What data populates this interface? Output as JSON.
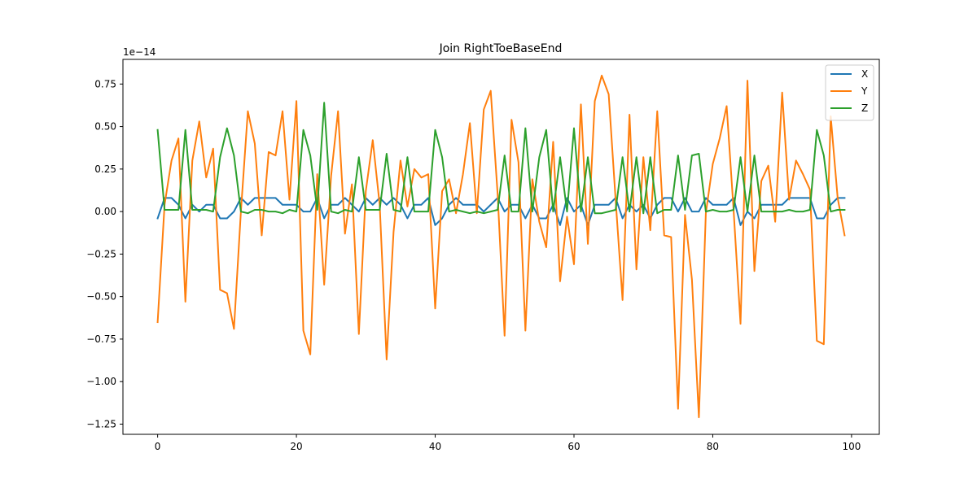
{
  "chart_data": {
    "type": "line",
    "title": "Join RightToeBaseEnd",
    "xlabel": "",
    "ylabel": "",
    "xlim": [
      -5,
      104
    ],
    "ylim": [
      -1.31,
      0.895
    ],
    "y_offset_label": "1e−14",
    "xticks": [
      0,
      20,
      40,
      60,
      80,
      100
    ],
    "yticks": [
      -1.25,
      -1.0,
      -0.75,
      -0.5,
      -0.25,
      0.0,
      0.25,
      0.5,
      0.75
    ],
    "ytick_labels": [
      "−1.25",
      "−1.00",
      "−0.75",
      "−0.50",
      "−0.25",
      "0.00",
      "0.25",
      "0.50",
      "0.75"
    ],
    "xtick_labels": [
      "0",
      "20",
      "40",
      "60",
      "80",
      "100"
    ],
    "grid": false,
    "legend_position": "top-right",
    "x": [
      0,
      1,
      2,
      3,
      4,
      5,
      6,
      7,
      8,
      9,
      10,
      11,
      12,
      13,
      14,
      15,
      16,
      17,
      18,
      19,
      20,
      21,
      22,
      23,
      24,
      25,
      26,
      27,
      28,
      29,
      30,
      31,
      32,
      33,
      34,
      35,
      36,
      37,
      38,
      39,
      40,
      41,
      42,
      43,
      44,
      45,
      46,
      47,
      48,
      49,
      50,
      51,
      52,
      53,
      54,
      55,
      56,
      57,
      58,
      59,
      60,
      61,
      62,
      63,
      64,
      65,
      66,
      67,
      68,
      69,
      70,
      71,
      72,
      73,
      74,
      75,
      76,
      77,
      78,
      79,
      80,
      81,
      82,
      83,
      84,
      85,
      86,
      87,
      88,
      89,
      90,
      91,
      92,
      93,
      94,
      95,
      96,
      97,
      98,
      99
    ],
    "series": [
      {
        "name": "X",
        "color": "#1f77b4",
        "values": [
          -0.04,
          0.08,
          0.08,
          0.04,
          -0.04,
          0.04,
          0.0,
          0.04,
          0.04,
          -0.04,
          -0.04,
          0.0,
          0.08,
          0.04,
          0.08,
          0.08,
          0.08,
          0.08,
          0.04,
          0.04,
          0.04,
          0.0,
          0.0,
          0.08,
          -0.04,
          0.04,
          0.04,
          0.08,
          0.04,
          0.0,
          0.08,
          0.04,
          0.08,
          0.04,
          0.08,
          0.04,
          -0.04,
          0.04,
          0.04,
          0.08,
          -0.08,
          -0.04,
          0.04,
          0.08,
          0.04,
          0.04,
          0.04,
          0.0,
          0.04,
          0.08,
          0.0,
          0.04,
          0.04,
          -0.04,
          0.04,
          -0.04,
          -0.04,
          0.04,
          -0.08,
          0.08,
          0.0,
          0.04,
          -0.08,
          0.04,
          0.04,
          0.04,
          0.08,
          -0.04,
          0.04,
          0.0,
          0.04,
          -0.04,
          0.04,
          0.08,
          0.08,
          0.0,
          0.08,
          0.0,
          0.0,
          0.08,
          0.04,
          0.04,
          0.04,
          0.08,
          -0.08,
          0.0,
          -0.04,
          0.04,
          0.04,
          0.04,
          0.04,
          0.08,
          0.08,
          0.08,
          0.08,
          -0.04,
          -0.04,
          0.04,
          0.08,
          0.08
        ]
      },
      {
        "name": "Y",
        "color": "#ff7f0e",
        "values": [
          -0.65,
          0.04,
          0.3,
          0.43,
          -0.53,
          0.3,
          0.53,
          0.2,
          0.37,
          -0.46,
          -0.48,
          -0.69,
          0.0,
          0.59,
          0.4,
          -0.14,
          0.35,
          0.33,
          0.59,
          0.07,
          0.65,
          -0.7,
          -0.84,
          0.22,
          -0.43,
          0.21,
          0.59,
          -0.13,
          0.16,
          -0.72,
          0.12,
          0.42,
          0.04,
          -0.87,
          -0.12,
          0.3,
          0.03,
          0.25,
          0.2,
          0.22,
          -0.57,
          0.12,
          0.19,
          -0.01,
          0.22,
          0.52,
          -0.01,
          0.6,
          0.71,
          0.1,
          -0.73,
          0.54,
          0.29,
          -0.7,
          0.19,
          -0.06,
          -0.21,
          0.41,
          -0.41,
          -0.03,
          -0.31,
          0.63,
          -0.19,
          0.65,
          0.8,
          0.69,
          0.07,
          -0.52,
          0.57,
          -0.34,
          0.32,
          -0.11,
          0.59,
          -0.14,
          -0.15,
          -1.16,
          -0.02,
          -0.4,
          -1.21,
          -0.01,
          0.28,
          0.43,
          0.62,
          0.01,
          -0.66,
          0.77,
          -0.35,
          0.18,
          0.27,
          -0.06,
          0.7,
          0.07,
          0.3,
          0.22,
          0.13,
          -0.76,
          -0.78,
          0.56,
          0.08,
          -0.14
        ]
      },
      {
        "name": "Z",
        "color": "#2ca02c",
        "values": [
          0.48,
          0.01,
          0.01,
          0.01,
          0.48,
          0.01,
          0.01,
          0.01,
          0.0,
          0.32,
          0.49,
          0.33,
          0.0,
          -0.01,
          0.01,
          0.01,
          0.0,
          0.0,
          -0.01,
          0.01,
          0.0,
          0.48,
          0.33,
          0.01,
          0.64,
          0.0,
          -0.01,
          0.01,
          0.0,
          0.32,
          0.01,
          0.01,
          0.01,
          0.34,
          0.01,
          0.0,
          0.32,
          0.0,
          0.0,
          0.0,
          0.48,
          0.32,
          0.0,
          0.01,
          0.0,
          -0.01,
          0.0,
          -0.01,
          0.0,
          0.01,
          0.33,
          0.0,
          0.0,
          0.49,
          0.0,
          0.32,
          0.48,
          0.0,
          0.32,
          0.0,
          0.49,
          0.0,
          0.32,
          -0.01,
          -0.01,
          0.0,
          0.01,
          0.32,
          0.0,
          0.32,
          -0.01,
          0.32,
          -0.01,
          0.01,
          0.01,
          0.33,
          0.01,
          0.33,
          0.34,
          0.0,
          0.01,
          0.0,
          0.0,
          0.01,
          0.32,
          0.0,
          0.33,
          0.0,
          0.0,
          0.0,
          0.0,
          0.01,
          0.0,
          0.0,
          0.01,
          0.48,
          0.33,
          0.0,
          0.01,
          0.01
        ]
      }
    ]
  }
}
